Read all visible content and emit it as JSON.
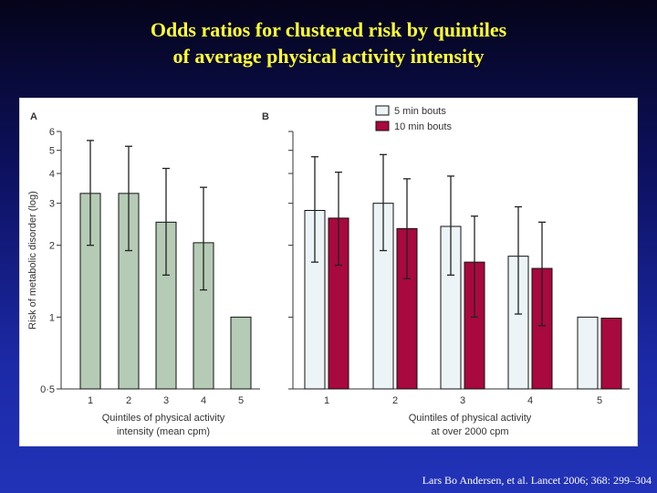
{
  "slide": {
    "title_line1": "Odds ratios for clustered risk by quintiles",
    "title_line2": "of average physical activity intensity",
    "citation": "Lars Bo Andersen, et al. Lancet 2006; 368: 299–304"
  },
  "chart_data": [
    {
      "type": "bar",
      "panel_label": "A",
      "categories": [
        "1",
        "2",
        "3",
        "4",
        "5"
      ],
      "series": [
        {
          "values": [
            3.3,
            3.3,
            2.5,
            2.05,
            1.0
          ],
          "ci_low": [
            2.0,
            1.9,
            1.5,
            1.3,
            null
          ],
          "ci_high": [
            5.5,
            5.2,
            4.2,
            3.5,
            null
          ],
          "color": "#b5cbb5"
        }
      ],
      "ylabel": "Risk of metabolic disorder (log)",
      "xlabel_line1": "Quintiles of physical activity",
      "xlabel_line2": "intensity (mean cpm)",
      "yscale": "log",
      "ylim": [
        0.5,
        6
      ],
      "yticks": [
        0.5,
        1,
        2,
        3,
        4,
        5,
        6
      ],
      "ytick_labels": [
        "0·5",
        "1",
        "2",
        "3",
        "4",
        "5",
        "6"
      ],
      "grid": false
    },
    {
      "type": "bar",
      "panel_label": "B",
      "categories": [
        "1",
        "2",
        "3",
        "4",
        "5"
      ],
      "series": [
        {
          "name": "5 min bouts",
          "values": [
            2.8,
            3.0,
            2.4,
            1.8,
            1.0
          ],
          "ci_low": [
            1.7,
            1.9,
            1.5,
            1.03,
            null
          ],
          "ci_high": [
            4.7,
            4.8,
            3.9,
            2.9,
            null
          ],
          "color": "#ecf4f8"
        },
        {
          "name": "10 min bouts",
          "values": [
            2.6,
            2.35,
            1.7,
            1.6,
            0.99
          ],
          "ci_low": [
            1.65,
            1.45,
            1.0,
            0.92,
            null
          ],
          "ci_high": [
            4.05,
            3.8,
            2.65,
            2.5,
            null
          ],
          "color": "#a8093e"
        }
      ],
      "xlabel_line1": "Quintiles of physical activity",
      "xlabel_line2": "at over 2000 cpm",
      "yscale": "log",
      "ylim": [
        0.5,
        6
      ],
      "yticks": [
        0.5,
        1,
        2,
        3,
        4,
        5,
        6
      ],
      "legend_position": "top-left",
      "grid": false
    }
  ]
}
